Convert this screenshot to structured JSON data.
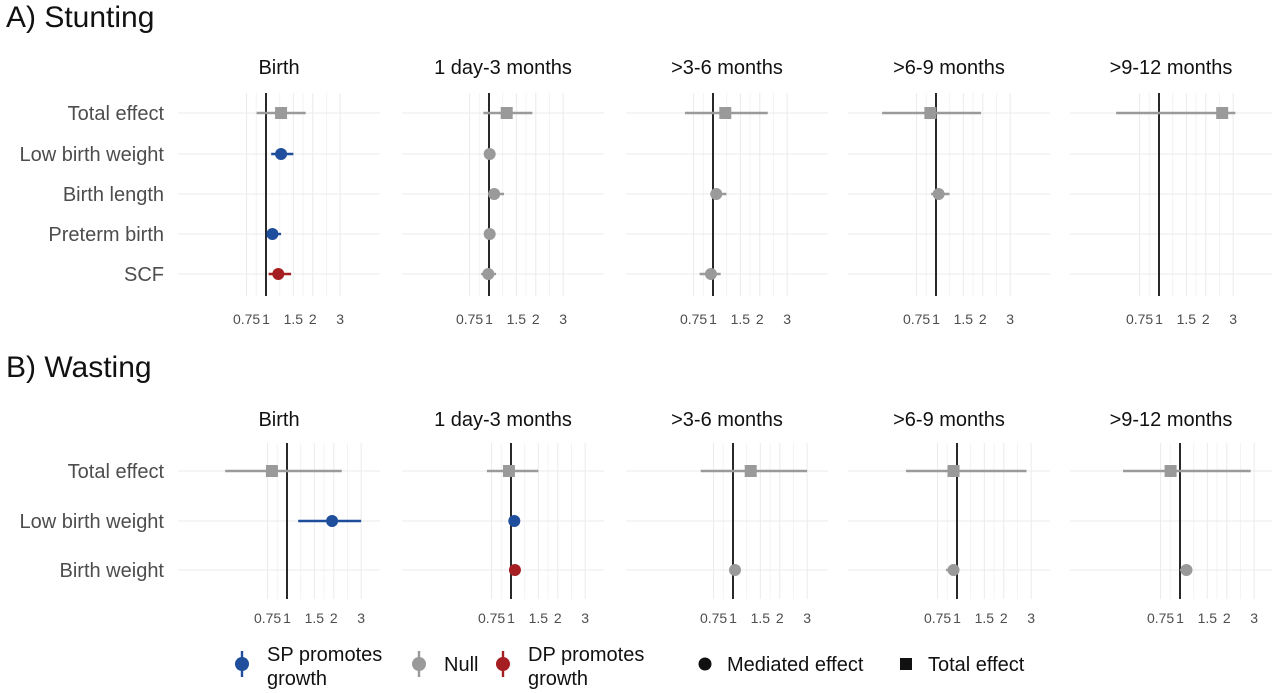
{
  "legend": {
    "items": [
      {
        "key": "sp",
        "label_lines": [
          "SP promotes",
          "growth"
        ],
        "color": "#1f4e9c"
      },
      {
        "key": "null",
        "label_lines": [
          "Null"
        ],
        "color": "#9a9a9a"
      },
      {
        "key": "dp",
        "label_lines": [
          "DP promotes",
          "growth"
        ],
        "color": "#a51e22"
      }
    ],
    "shapes": [
      {
        "key": "mediated",
        "label": "Mediated effect",
        "shape": "circle"
      },
      {
        "key": "total",
        "label": "Total effect",
        "shape": "square"
      }
    ]
  },
  "chart_data": [
    {
      "type": "forest",
      "panel": "A) Stunting",
      "scale": "log",
      "reference_line": 1,
      "ticks": [
        0.75,
        1,
        1.5,
        2,
        3
      ],
      "tick_labels": [
        "0.75",
        "1",
        "1.5",
        "2",
        "3"
      ],
      "xlim": [
        0.55,
        3.1
      ],
      "grid": true,
      "rows": [
        "Total effect",
        "Low birth weight",
        "Birth length",
        "Preterm birth",
        "SCF"
      ],
      "facets": [
        {
          "title": "Birth",
          "points": [
            {
              "row": "Total effect",
              "estimate": 1.25,
              "low": 0.87,
              "high": 1.8,
              "shape": "square",
              "category": "null"
            },
            {
              "row": "Low birth weight",
              "estimate": 1.25,
              "low": 1.08,
              "high": 1.5,
              "shape": "circle",
              "category": "sp"
            },
            {
              "row": "Preterm birth",
              "estimate": 1.1,
              "low": 1.02,
              "high": 1.25,
              "shape": "circle",
              "category": "sp"
            },
            {
              "row": "SCF",
              "estimate": 1.2,
              "low": 1.04,
              "high": 1.45,
              "shape": "circle",
              "category": "dp"
            }
          ]
        },
        {
          "title": "1 day-3 months",
          "points": [
            {
              "row": "Total effect",
              "estimate": 1.3,
              "low": 0.92,
              "high": 1.9,
              "shape": "square",
              "category": "null"
            },
            {
              "row": "Low birth weight",
              "estimate": 1.01,
              "low": 1.0,
              "high": 1.03,
              "shape": "circle",
              "category": "null"
            },
            {
              "row": "Birth length",
              "estimate": 1.08,
              "low": 0.99,
              "high": 1.25,
              "shape": "circle",
              "category": "null"
            },
            {
              "row": "Preterm birth",
              "estimate": 1.01,
              "low": 1.0,
              "high": 1.03,
              "shape": "circle",
              "category": "null"
            },
            {
              "row": "SCF",
              "estimate": 0.99,
              "low": 0.89,
              "high": 1.11,
              "shape": "circle",
              "category": "null"
            }
          ]
        },
        {
          "title": ">3-6 months",
          "points": [
            {
              "row": "Total effect",
              "estimate": 1.2,
              "low": 0.66,
              "high": 2.25,
              "shape": "square",
              "category": "null"
            },
            {
              "row": "Birth length",
              "estimate": 1.05,
              "low": 0.96,
              "high": 1.22,
              "shape": "circle",
              "category": "null"
            },
            {
              "row": "SCF",
              "estimate": 0.97,
              "low": 0.82,
              "high": 1.12,
              "shape": "circle",
              "category": "null"
            }
          ]
        },
        {
          "title": ">6-9 months",
          "points": [
            {
              "row": "Total effect",
              "estimate": 0.92,
              "low": 0.45,
              "high": 1.95,
              "shape": "square",
              "category": "null"
            },
            {
              "row": "Birth length",
              "estimate": 1.04,
              "low": 0.93,
              "high": 1.22,
              "shape": "circle",
              "category": "null"
            }
          ]
        },
        {
          "title": ">9-12 months",
          "points": [
            {
              "row": "Total effect",
              "estimate": 2.55,
              "low": 0.53,
              "high": 3.1,
              "shape": "square",
              "category": "null"
            }
          ]
        }
      ]
    },
    {
      "type": "forest",
      "panel": "B) Wasting",
      "scale": "log",
      "reference_line": 1,
      "ticks": [
        0.75,
        1,
        1.5,
        2,
        3
      ],
      "tick_labels": [
        "0.75",
        "1",
        "1.5",
        "2",
        "3"
      ],
      "xlim": [
        0.55,
        3.1
      ],
      "grid": true,
      "rows": [
        "Total effect",
        "Low birth weight",
        "Birth weight"
      ],
      "facets": [
        {
          "title": "Birth",
          "points": [
            {
              "row": "Total effect",
              "estimate": 0.8,
              "low": 0.4,
              "high": 2.25,
              "shape": "square",
              "category": "null"
            },
            {
              "row": "Low birth weight",
              "estimate": 1.95,
              "low": 1.18,
              "high": 3.0,
              "shape": "circle",
              "category": "sp"
            }
          ]
        },
        {
          "title": "1 day-3 months",
          "points": [
            {
              "row": "Total effect",
              "estimate": 0.97,
              "low": 0.7,
              "high": 1.5,
              "shape": "square",
              "category": "null"
            },
            {
              "row": "Low birth weight",
              "estimate": 1.05,
              "low": 1.01,
              "high": 1.1,
              "shape": "circle",
              "category": "sp"
            },
            {
              "row": "Birth weight",
              "estimate": 1.06,
              "low": 1.02,
              "high": 1.09,
              "shape": "circle",
              "category": "dp"
            }
          ]
        },
        {
          "title": ">3-6 months",
          "points": [
            {
              "row": "Total effect",
              "estimate": 1.3,
              "low": 0.62,
              "high": 3.0,
              "shape": "square",
              "category": "null"
            },
            {
              "row": "Birth weight",
              "estimate": 1.03,
              "low": 0.98,
              "high": 1.1,
              "shape": "circle",
              "category": "null"
            }
          ]
        },
        {
          "title": ">6-9 months",
          "points": [
            {
              "row": "Total effect",
              "estimate": 0.95,
              "low": 0.47,
              "high": 2.8,
              "shape": "square",
              "category": "null"
            },
            {
              "row": "Birth weight",
              "estimate": 0.95,
              "low": 0.85,
              "high": 0.98,
              "shape": "circle",
              "category": "null"
            }
          ]
        },
        {
          "title": ">9-12 months",
          "points": [
            {
              "row": "Total effect",
              "estimate": 0.87,
              "low": 0.43,
              "high": 2.85,
              "shape": "square",
              "category": "null"
            },
            {
              "row": "Birth weight",
              "estimate": 1.1,
              "low": 1.0,
              "high": 1.2,
              "shape": "circle",
              "category": "null"
            }
          ]
        }
      ]
    }
  ]
}
